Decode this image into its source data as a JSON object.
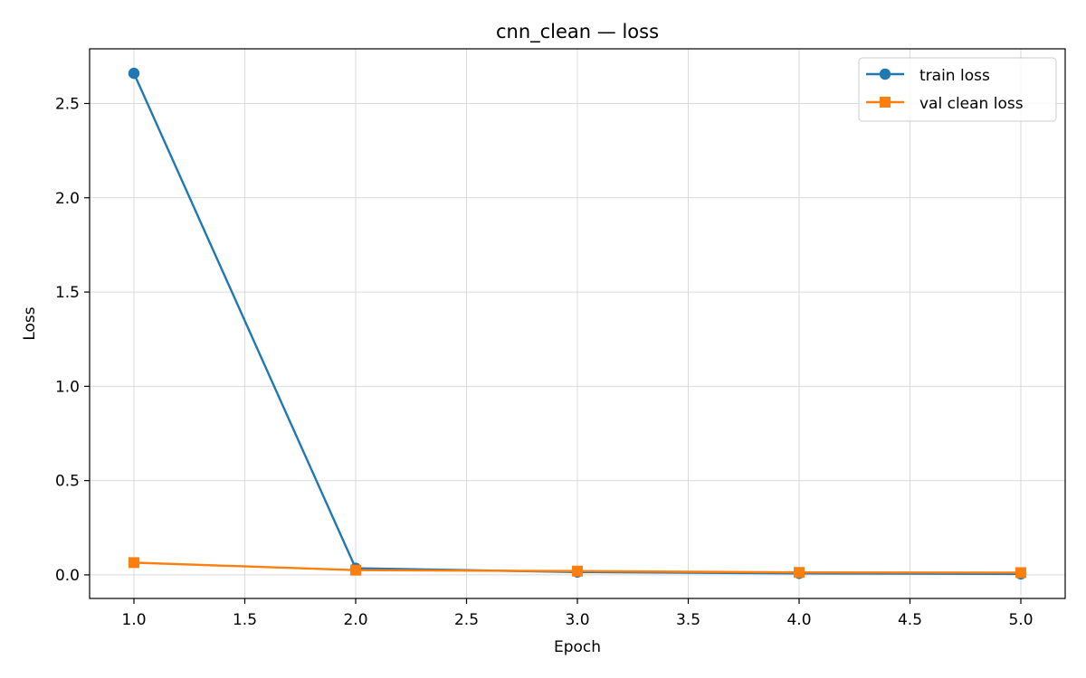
{
  "chart_data": {
    "type": "line",
    "title": "cnn_clean — loss",
    "xlabel": "Epoch",
    "ylabel": "Loss",
    "xlim": [
      0.8,
      5.2
    ],
    "ylim": [
      -0.125,
      2.79
    ],
    "xticks": [
      1.0,
      1.5,
      2.0,
      2.5,
      3.0,
      3.5,
      4.0,
      4.5,
      5.0
    ],
    "xtick_labels": [
      "1.0",
      "1.5",
      "2.0",
      "2.5",
      "3.0",
      "3.5",
      "4.0",
      "4.5",
      "5.0"
    ],
    "yticks": [
      0.0,
      0.5,
      1.0,
      1.5,
      2.0,
      2.5
    ],
    "ytick_labels": [
      "0.0",
      "0.5",
      "1.0",
      "1.5",
      "2.0",
      "2.5"
    ],
    "grid": true,
    "legend_position": "top-right",
    "x": [
      1,
      2,
      3,
      4,
      5
    ],
    "series": [
      {
        "name": "train loss",
        "color": "#1f77b4",
        "marker": "circle",
        "values": [
          2.66,
          0.035,
          0.015,
          0.008,
          0.005
        ]
      },
      {
        "name": "val clean loss",
        "color": "#ff7f0e",
        "marker": "square",
        "values": [
          0.065,
          0.025,
          0.02,
          0.013,
          0.012
        ]
      }
    ]
  }
}
